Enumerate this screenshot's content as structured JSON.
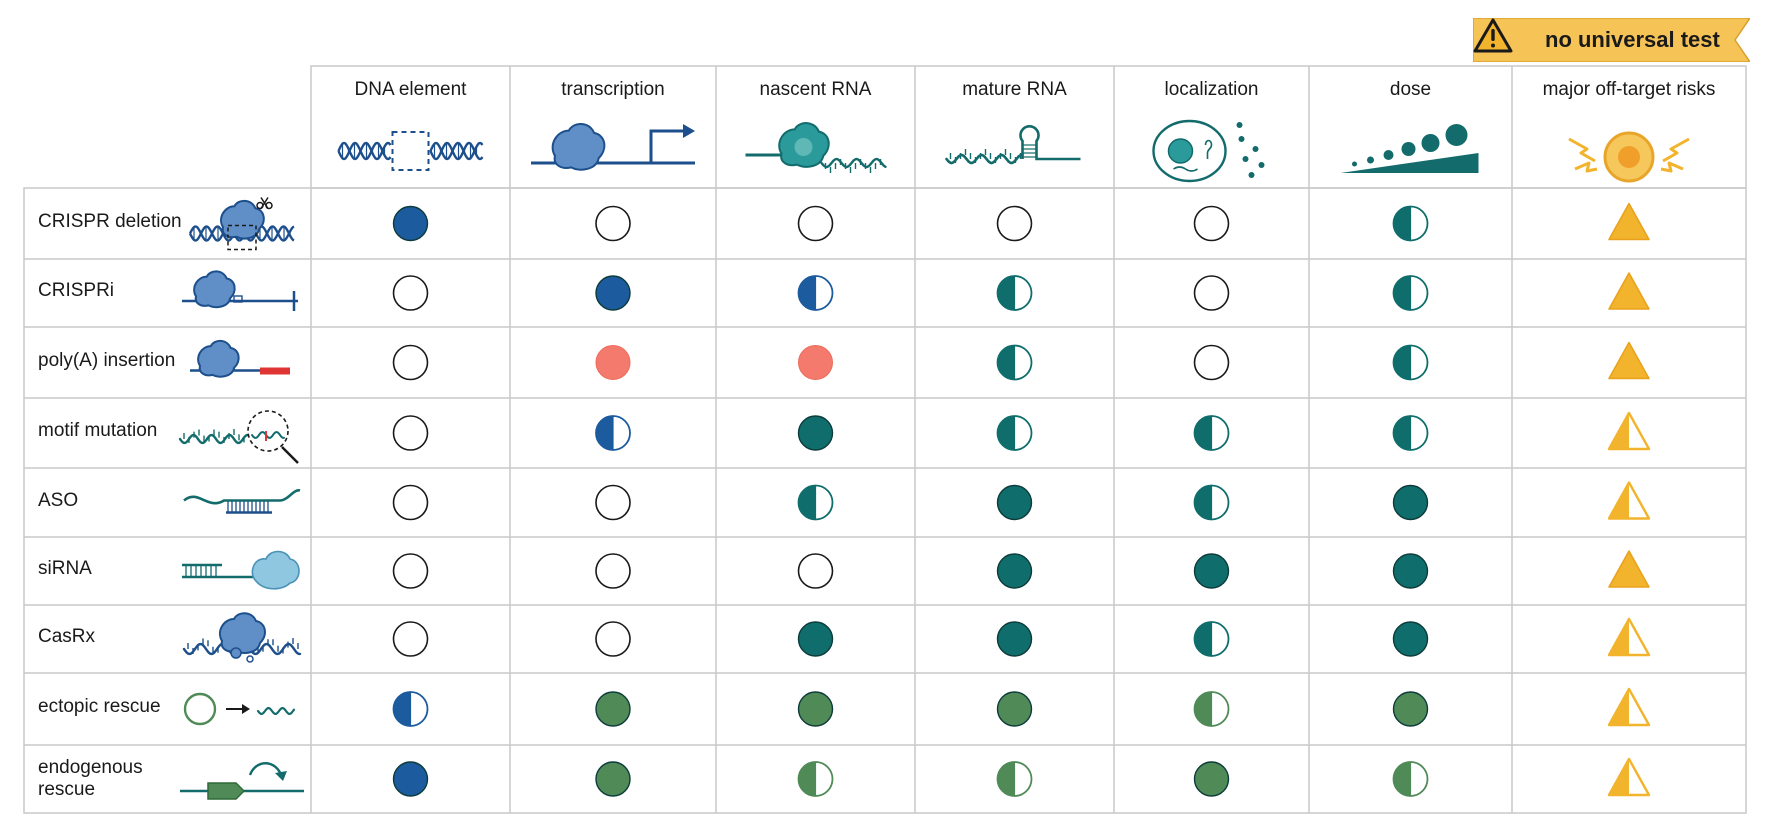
{
  "banner": {
    "text": "no universal test",
    "icon": "warning-icon"
  },
  "columns": [
    {
      "key": "dna",
      "label": "DNA element",
      "icon": "dna-deletion-icon"
    },
    {
      "key": "tx",
      "label": "transcription",
      "icon": "polymerase-promoter-icon"
    },
    {
      "key": "nascent",
      "label": "nascent RNA",
      "icon": "polymerase-nascent-rna-icon"
    },
    {
      "key": "mature",
      "label": "mature RNA",
      "icon": "hairpin-rna-icon"
    },
    {
      "key": "loc",
      "label": "localization",
      "icon": "cell-icon"
    },
    {
      "key": "dose",
      "label": "dose",
      "icon": "dose-gradient-icon"
    },
    {
      "key": "risk",
      "label": "major off-target risks",
      "icon": "off-target-icon"
    }
  ],
  "rows": [
    {
      "label": "CRISPR deletion",
      "icon": "crispr-scissors-icon",
      "cells": [
        "full-blue",
        "empty",
        "empty",
        "empty",
        "empty",
        "half-teal",
        "triangle-full"
      ]
    },
    {
      "label": "CRISPRi",
      "icon": "dcas9-block-icon",
      "cells": [
        "empty",
        "full-blue",
        "half-blue",
        "half-teal",
        "empty",
        "half-teal",
        "triangle-full"
      ]
    },
    {
      "label": "poly(A) insertion",
      "icon": "polya-insert-icon",
      "cells": [
        "empty",
        "full-red",
        "full-red",
        "half-teal",
        "empty",
        "half-teal",
        "triangle-full"
      ]
    },
    {
      "label": "motif mutation",
      "icon": "motif-magnifier-icon",
      "cells": [
        "empty",
        "half-blue",
        "full-teal",
        "half-teal",
        "half-teal",
        "half-teal",
        "triangle-half"
      ]
    },
    {
      "label": "ASO",
      "icon": "aso-icon",
      "cells": [
        "empty",
        "empty",
        "half-teal",
        "full-teal",
        "half-teal",
        "full-teal",
        "triangle-half"
      ]
    },
    {
      "label": "siRNA",
      "icon": "sirna-risc-icon",
      "cells": [
        "empty",
        "empty",
        "empty",
        "full-teal",
        "full-teal",
        "full-teal",
        "triangle-full"
      ]
    },
    {
      "label": "CasRx",
      "icon": "casrx-icon",
      "cells": [
        "empty",
        "empty",
        "full-teal",
        "full-teal",
        "half-teal",
        "full-teal",
        "triangle-half"
      ]
    },
    {
      "label": "ectopic rescue",
      "icon": "plasmid-expression-icon",
      "cells": [
        "half-blue",
        "full-green",
        "full-green",
        "full-green",
        "half-green",
        "full-green",
        "triangle-half"
      ]
    },
    {
      "label": "endogenous rescue",
      "label_lines": [
        "endogenous",
        "rescue"
      ],
      "icon": "endogenous-locus-icon",
      "cells": [
        "full-blue",
        "full-green",
        "half-green",
        "half-green",
        "full-green",
        "half-green",
        "triangle-half"
      ]
    }
  ],
  "colors": {
    "blue": "#1b5b9e",
    "teal": "#0f6e6c",
    "green": "#4f8a57",
    "red": "#f37a6c",
    "amber": "#f2b32d",
    "grid": "#c9c9c9",
    "icon_blue": "#1d4f8c",
    "icon_blob": "#5f8fc6",
    "icon_teal": "#136b6c"
  }
}
